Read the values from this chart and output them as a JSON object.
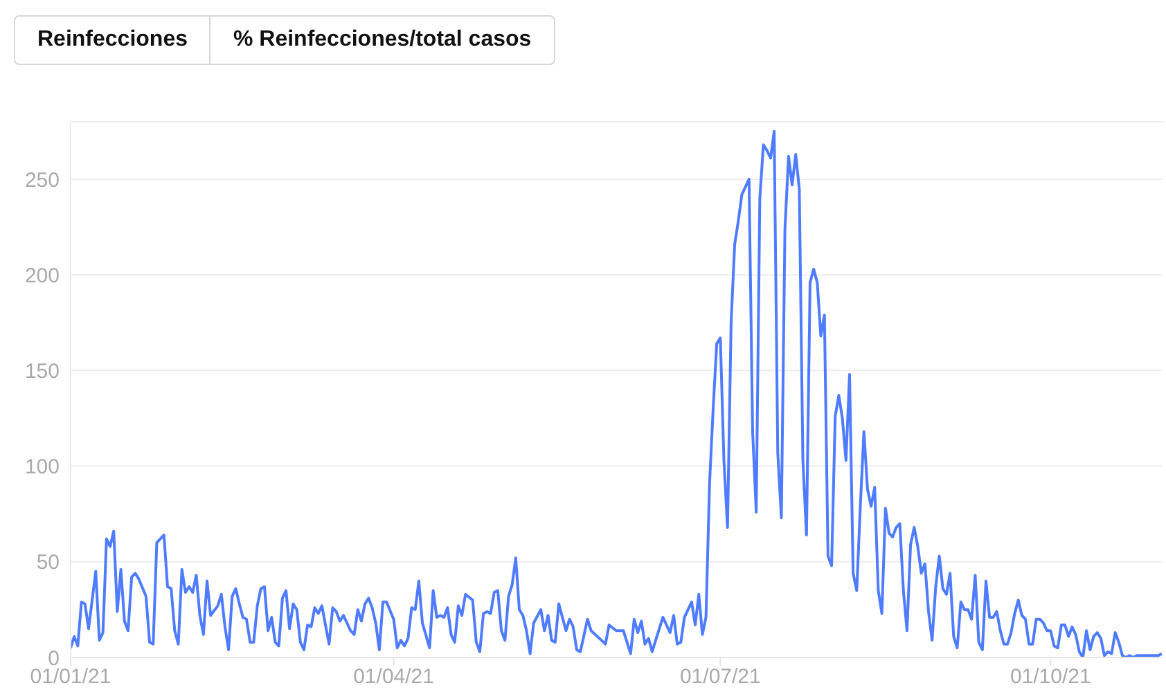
{
  "chart_data": {
    "type": "line",
    "annotations": [
      "Reinfecciones",
      "% Reinfecciones/total casos"
    ],
    "xlim": [
      "2021-01-01",
      "2021-11-01"
    ],
    "xticks": [
      {
        "value": "2021-01-01",
        "label": "01/01/21"
      },
      {
        "value": "2021-04-01",
        "label": "01/04/21"
      },
      {
        "value": "2021-07-01",
        "label": "01/07/21"
      },
      {
        "value": "2021-10-01",
        "label": "01/10/21"
      }
    ],
    "ylim": [
      0,
      280
    ],
    "yticks": [
      0,
      50,
      100,
      150,
      200,
      250
    ],
    "grid": "y",
    "series": [
      {
        "color": "#4f7cff",
        "x": [
          "2021-01-01",
          "2021-01-02",
          "2021-01-03",
          "2021-01-04",
          "2021-01-05",
          "2021-01-06",
          "2021-01-08",
          "2021-01-09",
          "2021-01-10",
          "2021-01-11",
          "2021-01-12",
          "2021-01-13",
          "2021-01-14",
          "2021-01-15",
          "2021-01-16",
          "2021-01-17",
          "2021-01-18",
          "2021-01-19",
          "2021-01-20",
          "2021-01-22",
          "2021-01-23",
          "2021-01-24",
          "2021-01-25",
          "2021-01-27",
          "2021-01-28",
          "2021-01-29",
          "2021-01-30",
          "2021-01-31",
          "2021-02-01",
          "2021-02-02",
          "2021-02-03",
          "2021-02-04",
          "2021-02-05",
          "2021-02-06",
          "2021-02-07",
          "2021-02-08",
          "2021-02-09",
          "2021-02-11",
          "2021-02-12",
          "2021-02-13",
          "2021-02-14",
          "2021-02-15",
          "2021-02-16",
          "2021-02-17",
          "2021-02-18",
          "2021-02-19",
          "2021-02-20",
          "2021-02-21",
          "2021-02-22",
          "2021-02-23",
          "2021-02-24",
          "2021-02-25",
          "2021-02-26",
          "2021-02-27",
          "2021-02-28",
          "2021-03-01",
          "2021-03-02",
          "2021-03-03",
          "2021-03-04",
          "2021-03-05",
          "2021-03-06",
          "2021-03-07",
          "2021-03-08",
          "2021-03-09",
          "2021-03-10",
          "2021-03-11",
          "2021-03-12",
          "2021-03-13",
          "2021-03-14",
          "2021-03-15",
          "2021-03-16",
          "2021-03-17",
          "2021-03-18",
          "2021-03-19",
          "2021-03-20",
          "2021-03-21",
          "2021-03-22",
          "2021-03-23",
          "2021-03-24",
          "2021-03-25",
          "2021-03-26",
          "2021-03-27",
          "2021-03-28",
          "2021-03-29",
          "2021-03-30",
          "2021-04-01",
          "2021-04-02",
          "2021-04-03",
          "2021-04-04",
          "2021-04-05",
          "2021-04-06",
          "2021-04-07",
          "2021-04-08",
          "2021-04-09",
          "2021-04-11",
          "2021-04-12",
          "2021-04-13",
          "2021-04-14",
          "2021-04-15",
          "2021-04-16",
          "2021-04-17",
          "2021-04-18",
          "2021-04-19",
          "2021-04-20",
          "2021-04-21",
          "2021-04-23",
          "2021-04-24",
          "2021-04-25",
          "2021-04-26",
          "2021-04-27",
          "2021-04-28",
          "2021-04-29",
          "2021-04-30",
          "2021-05-01",
          "2021-05-02",
          "2021-05-03",
          "2021-05-04",
          "2021-05-05",
          "2021-05-06",
          "2021-05-07",
          "2021-05-08",
          "2021-05-09",
          "2021-05-10",
          "2021-05-12",
          "2021-05-13",
          "2021-05-14",
          "2021-05-15",
          "2021-05-16",
          "2021-05-17",
          "2021-05-19",
          "2021-05-20",
          "2021-05-21",
          "2021-05-22",
          "2021-05-23",
          "2021-05-25",
          "2021-05-26",
          "2021-05-30",
          "2021-05-31",
          "2021-06-02",
          "2021-06-04",
          "2021-06-06",
          "2021-06-07",
          "2021-06-08",
          "2021-06-09",
          "2021-06-10",
          "2021-06-11",
          "2021-06-12",
          "2021-06-15",
          "2021-06-17",
          "2021-06-18",
          "2021-06-19",
          "2021-06-20",
          "2021-06-21",
          "2021-06-23",
          "2021-06-24",
          "2021-06-25",
          "2021-06-26",
          "2021-06-27",
          "2021-06-28",
          "2021-06-29",
          "2021-06-30",
          "2021-07-01",
          "2021-07-02",
          "2021-07-03",
          "2021-07-04",
          "2021-07-05",
          "2021-07-06",
          "2021-07-07",
          "2021-07-09",
          "2021-07-10",
          "2021-07-11",
          "2021-07-12",
          "2021-07-13",
          "2021-07-14",
          "2021-07-15",
          "2021-07-16",
          "2021-07-17",
          "2021-07-18",
          "2021-07-19",
          "2021-07-20",
          "2021-07-21",
          "2021-07-22",
          "2021-07-23",
          "2021-07-24",
          "2021-07-25",
          "2021-07-26",
          "2021-07-27",
          "2021-07-28",
          "2021-07-29",
          "2021-07-30",
          "2021-07-31",
          "2021-08-01",
          "2021-08-02",
          "2021-08-03",
          "2021-08-04",
          "2021-08-05",
          "2021-08-06",
          "2021-08-07",
          "2021-08-08",
          "2021-08-09",
          "2021-08-10",
          "2021-08-11",
          "2021-08-12",
          "2021-08-13",
          "2021-08-14",
          "2021-08-15",
          "2021-08-16",
          "2021-08-17",
          "2021-08-18",
          "2021-08-19",
          "2021-08-20",
          "2021-08-21",
          "2021-08-22",
          "2021-08-23",
          "2021-08-24",
          "2021-08-25",
          "2021-08-26",
          "2021-08-27",
          "2021-08-28",
          "2021-08-29",
          "2021-08-30",
          "2021-08-31",
          "2021-09-01",
          "2021-09-02",
          "2021-09-03",
          "2021-09-04",
          "2021-09-05",
          "2021-09-06",
          "2021-09-07",
          "2021-09-08",
          "2021-09-09",
          "2021-09-10",
          "2021-09-11",
          "2021-09-12",
          "2021-09-13",
          "2021-09-14",
          "2021-09-15",
          "2021-09-16",
          "2021-09-17",
          "2021-09-18",
          "2021-09-19",
          "2021-09-20",
          "2021-09-21",
          "2021-09-22",
          "2021-09-23",
          "2021-09-24",
          "2021-09-25",
          "2021-09-26",
          "2021-09-27",
          "2021-09-28",
          "2021-09-29",
          "2021-09-30",
          "2021-10-01",
          "2021-10-02",
          "2021-10-03",
          "2021-10-04",
          "2021-10-05",
          "2021-10-06",
          "2021-10-07",
          "2021-10-08",
          "2021-10-09",
          "2021-10-10",
          "2021-10-11",
          "2021-10-12",
          "2021-10-13",
          "2021-10-14",
          "2021-10-15",
          "2021-10-16",
          "2021-10-17",
          "2021-10-18",
          "2021-10-19",
          "2021-10-20",
          "2021-10-21",
          "2021-10-22",
          "2021-10-23",
          "2021-10-24",
          "2021-10-25",
          "2021-10-26",
          "2021-10-31",
          "2021-11-01"
        ],
        "values": [
          5,
          11,
          6,
          29,
          28,
          15,
          45,
          9,
          13,
          62,
          58,
          66,
          24,
          46,
          19,
          14,
          42,
          44,
          41,
          32,
          8,
          7,
          60,
          64,
          37,
          36,
          14,
          7,
          46,
          34,
          37,
          34,
          43,
          22,
          12,
          40,
          22,
          27,
          33,
          16,
          4,
          32,
          36,
          28,
          21,
          20,
          8,
          8,
          27,
          36,
          37,
          14,
          21,
          8,
          6,
          31,
          35,
          15,
          28,
          25,
          8,
          4,
          17,
          16,
          26,
          23,
          27,
          17,
          7,
          26,
          24,
          19,
          22,
          18,
          14,
          12,
          25,
          19,
          28,
          31,
          26,
          18,
          4,
          29,
          29,
          20,
          5,
          9,
          6,
          10,
          26,
          25,
          40,
          18,
          5,
          35,
          21,
          22,
          21,
          26,
          12,
          8,
          27,
          22,
          33,
          30,
          8,
          3,
          23,
          24,
          23,
          34,
          35,
          14,
          9,
          32,
          38,
          52,
          25,
          22,
          14,
          2,
          18,
          25,
          14,
          22,
          9,
          8,
          28,
          14,
          20,
          16,
          4,
          3,
          20,
          14,
          7,
          17,
          14,
          14,
          2,
          20,
          13,
          19,
          7,
          10,
          3,
          21,
          13,
          22,
          7,
          8,
          21,
          29,
          17,
          33,
          12,
          21,
          91,
          130,
          164,
          167,
          103,
          68,
          175,
          216,
          228,
          242,
          250,
          118,
          76,
          240,
          268,
          265,
          261,
          275,
          107,
          73,
          224,
          262,
          247,
          263,
          245,
          103,
          64,
          196,
          203,
          196,
          168,
          179,
          53,
          48,
          126,
          137,
          125,
          103,
          148,
          44,
          35,
          79,
          118,
          88,
          79,
          89,
          35,
          23,
          78,
          65,
          63,
          68,
          70,
          35,
          14,
          59,
          68,
          58,
          44,
          49,
          24,
          9,
          37,
          53,
          36,
          33,
          44,
          11,
          5,
          29,
          25,
          25,
          20,
          43,
          8,
          4,
          40,
          21,
          21,
          24,
          14,
          7,
          7,
          13,
          23,
          30,
          22,
          20,
          7,
          7,
          20,
          20,
          18,
          14,
          14,
          6,
          5,
          17,
          17,
          11,
          16,
          12,
          3,
          0,
          14,
          4,
          11,
          13,
          10,
          1,
          3,
          2,
          13,
          8,
          1,
          0,
          1,
          0,
          1,
          1,
          1,
          2
        ]
      }
    ]
  }
}
